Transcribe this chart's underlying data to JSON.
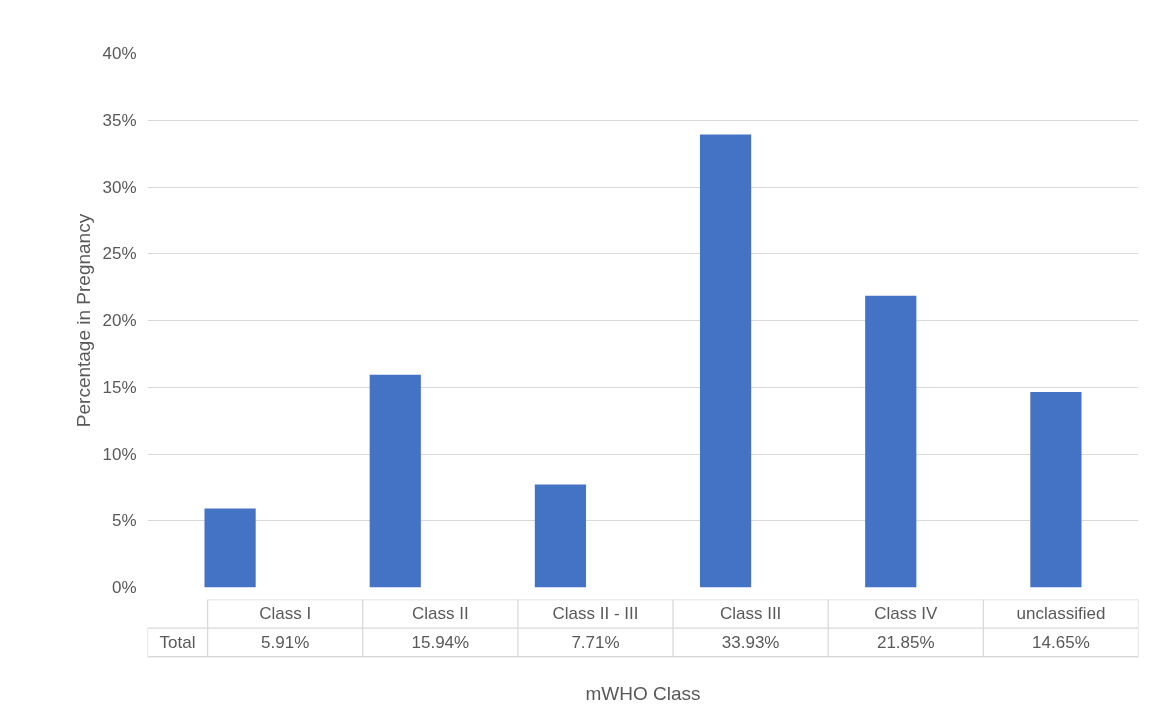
{
  "chart_data": {
    "type": "bar",
    "xlabel": "mWHO Class",
    "ylabel": "Percentage in Pregnancy",
    "categories": [
      "Class I",
      "Class II",
      "Class II - III",
      "Class III",
      "Class IV",
      "unclassified"
    ],
    "series": [
      {
        "name": "Total",
        "color": "#4472c4",
        "values": [
          5.91,
          15.94,
          7.71,
          33.93,
          21.85,
          14.65
        ],
        "value_labels": [
          "5.91%",
          "15.94%",
          "7.71%",
          "33.93%",
          "21.85%",
          "14.65%"
        ]
      }
    ],
    "ylim": [
      0,
      40
    ],
    "yticks": [
      {
        "value": 0,
        "label": "0%"
      },
      {
        "value": 5,
        "label": "5%"
      },
      {
        "value": 10,
        "label": "10%"
      },
      {
        "value": 15,
        "label": "15%"
      },
      {
        "value": 20,
        "label": "20%"
      },
      {
        "value": 25,
        "label": "25%"
      },
      {
        "value": 30,
        "label": "30%"
      },
      {
        "value": 35,
        "label": "35%"
      },
      {
        "value": 40,
        "label": "40%"
      }
    ],
    "grid": "y"
  }
}
